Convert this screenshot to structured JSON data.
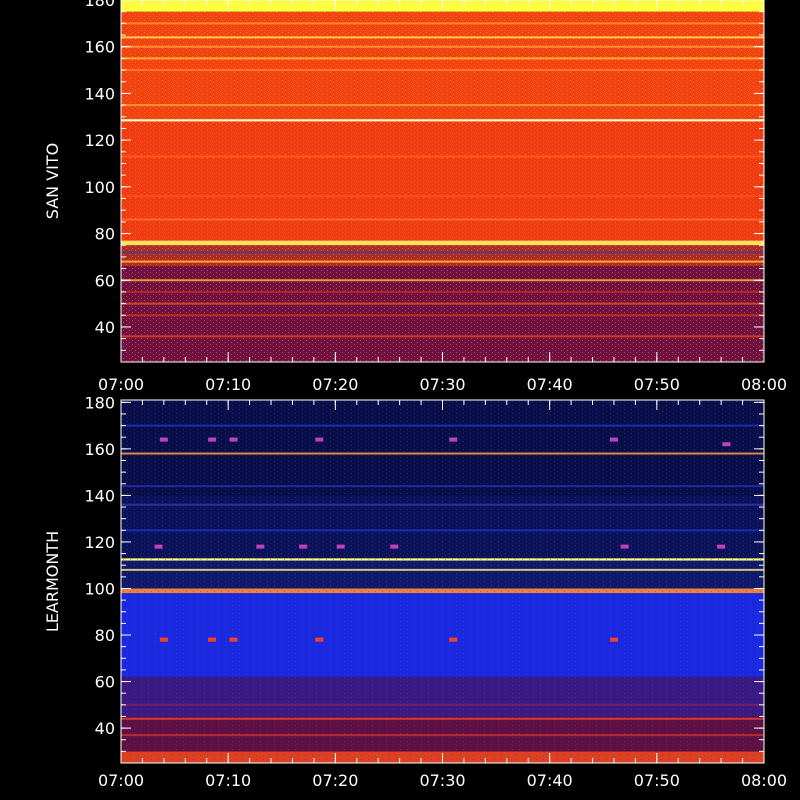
{
  "chart_data": [
    {
      "type": "heatmap",
      "title": "",
      "ylabel": "SAN VITO",
      "xlabel": "",
      "x_ticks": [
        "07:00",
        "07:10",
        "07:20",
        "07:30",
        "07:40",
        "07:50",
        "08:00"
      ],
      "y_ticks": [
        40,
        60,
        80,
        100,
        120,
        140,
        160,
        180
      ],
      "ylim": [
        25,
        180
      ],
      "xlim": [
        "07:00",
        "08:00"
      ],
      "colormap": "red-yellow",
      "bands": [
        {
          "y0": 25,
          "y1": 66,
          "color": "#701040"
        },
        {
          "y0": 66,
          "y1": 75,
          "color": "#b02a20"
        },
        {
          "y0": 75,
          "y1": 77,
          "color": "#ffe060"
        },
        {
          "y0": 77,
          "y1": 128,
          "color": "#f23a10"
        },
        {
          "y0": 128,
          "y1": 129,
          "color": "#ffffcc"
        },
        {
          "y0": 129,
          "y1": 175,
          "color": "#f24210"
        },
        {
          "y0": 175,
          "y1": 180,
          "color": "#ffff40"
        }
      ],
      "lines": [
        {
          "y": 36,
          "color": "#e04020"
        },
        {
          "y": 45,
          "color": "#d03020"
        },
        {
          "y": 50,
          "color": "#e05020"
        },
        {
          "y": 55,
          "color": "#c02820"
        },
        {
          "y": 60,
          "color": "#ffb030"
        },
        {
          "y": 68,
          "color": "#ffc040"
        },
        {
          "y": 72,
          "color": "#4040a0"
        },
        {
          "y": 86,
          "color": "#ff7030"
        },
        {
          "y": 96,
          "color": "#ff5020"
        },
        {
          "y": 113,
          "color": "#ff6020"
        },
        {
          "y": 135,
          "color": "#ffa030"
        },
        {
          "y": 150,
          "color": "#ff8030"
        },
        {
          "y": 155,
          "color": "#ffc040"
        },
        {
          "y": 160,
          "color": "#ffa040"
        },
        {
          "y": 164,
          "color": "#ffe060"
        },
        {
          "y": 170,
          "color": "#ff9030"
        }
      ],
      "grid": false
    },
    {
      "type": "heatmap",
      "title": "",
      "ylabel": "LEARMONTH",
      "xlabel": "",
      "x_ticks": [
        "07:00",
        "07:10",
        "07:20",
        "07:30",
        "07:40",
        "07:50",
        "08:00"
      ],
      "y_ticks": [
        40,
        60,
        80,
        100,
        120,
        140,
        160,
        180
      ],
      "ylim": [
        25,
        181
      ],
      "xlim": [
        "07:00",
        "08:00"
      ],
      "colormap": "blue-red",
      "bands": [
        {
          "y0": 25,
          "y1": 30,
          "color": "#e04020"
        },
        {
          "y0": 30,
          "y1": 45,
          "color": "#601040"
        },
        {
          "y0": 45,
          "y1": 62,
          "color": "#3a1a80"
        },
        {
          "y0": 62,
          "y1": 98,
          "color": "#1a28e0"
        },
        {
          "y0": 98,
          "y1": 100,
          "color": "#f08040"
        },
        {
          "y0": 100,
          "y1": 112,
          "color": "#101868"
        },
        {
          "y0": 112,
          "y1": 113,
          "color": "#ffff80"
        },
        {
          "y0": 113,
          "y1": 140,
          "color": "#0c1258"
        },
        {
          "y0": 140,
          "y1": 181,
          "color": "#0a0e48"
        }
      ],
      "lines": [
        {
          "y": 37,
          "color": "#c03030"
        },
        {
          "y": 44,
          "color": "#e04040"
        },
        {
          "y": 50,
          "color": "#802060"
        },
        {
          "y": 108,
          "color": "#ffe080"
        },
        {
          "y": 125,
          "color": "#2030c0"
        },
        {
          "y": 136,
          "color": "#4030a0"
        },
        {
          "y": 144,
          "color": "#2030b0"
        },
        {
          "y": 158,
          "color": "#ffa040"
        },
        {
          "y": 170,
          "color": "#2030c0"
        }
      ],
      "spots": [
        {
          "x": 4,
          "y": 164
        },
        {
          "x": 8.5,
          "y": 164
        },
        {
          "x": 10.5,
          "y": 164
        },
        {
          "x": 18.5,
          "y": 164
        },
        {
          "x": 31,
          "y": 164
        },
        {
          "x": 46,
          "y": 164
        },
        {
          "x": 56.5,
          "y": 162
        },
        {
          "x": 4,
          "y": 78
        },
        {
          "x": 8.5,
          "y": 78
        },
        {
          "x": 10.5,
          "y": 78
        },
        {
          "x": 18.5,
          "y": 78
        },
        {
          "x": 31,
          "y": 78
        },
        {
          "x": 46,
          "y": 78
        },
        {
          "x": 3.5,
          "y": 118
        },
        {
          "x": 13,
          "y": 118
        },
        {
          "x": 17,
          "y": 118
        },
        {
          "x": 20.5,
          "y": 118
        },
        {
          "x": 25.5,
          "y": 118
        },
        {
          "x": 47,
          "y": 118
        },
        {
          "x": 56,
          "y": 118
        }
      ],
      "grid": false
    }
  ]
}
